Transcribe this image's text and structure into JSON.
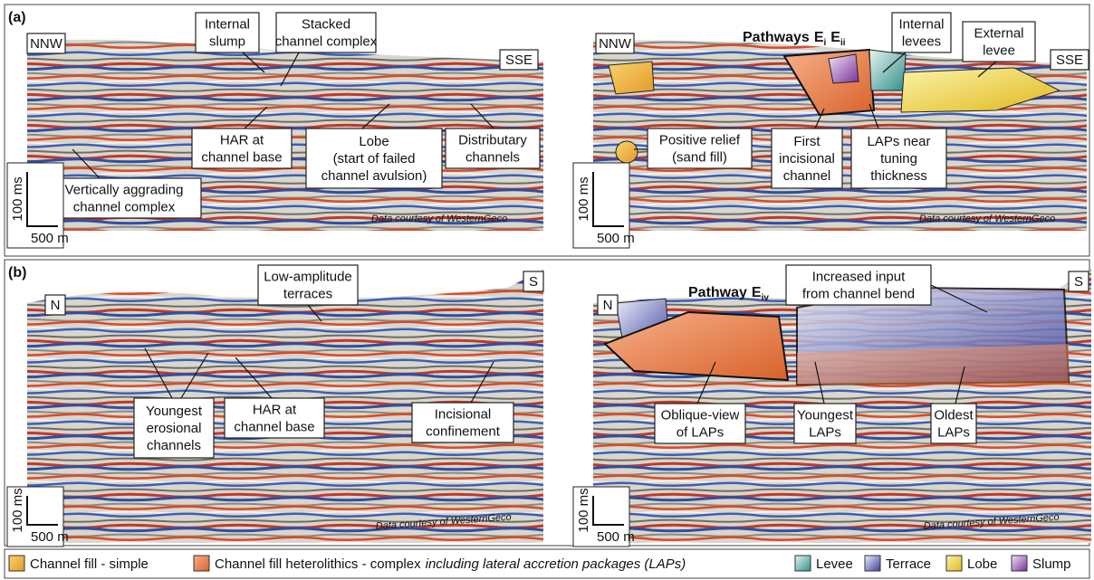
{
  "panels": [
    {
      "label": "(a)",
      "sections": [
        {
          "left_direction": "NNW",
          "right_direction": "SSE",
          "annotations": [
            {
              "lines": [
                "Internal",
                "slump"
              ]
            },
            {
              "lines": [
                "Stacked",
                "channel complex"
              ]
            },
            {
              "lines": [
                "HAR at",
                "channel base"
              ]
            },
            {
              "lines": [
                "Lobe",
                "(start of failed",
                "channel avulsion)"
              ]
            },
            {
              "lines": [
                "Distributary",
                "channels"
              ]
            },
            {
              "lines": [
                "Vertically aggrading",
                "channel complex"
              ]
            }
          ],
          "vertical_scale": "100 ms",
          "horizontal_scale": "500 m",
          "credit": "Data courtesy of WesternGeco"
        },
        {
          "title": {
            "text": "Pathways",
            "items": [
              {
                "letter": "E",
                "sub": "i"
              },
              {
                "letter": "E",
                "sub": "ii"
              }
            ]
          },
          "left_direction": "NNW",
          "right_direction": "SSE",
          "annotations": [
            {
              "lines": [
                "Internal",
                "levees"
              ]
            },
            {
              "lines": [
                "External",
                "levee"
              ]
            },
            {
              "lines": [
                "Positive relief",
                "(sand fill)"
              ]
            },
            {
              "lines": [
                "First",
                "incisional",
                "channel"
              ]
            },
            {
              "lines": [
                "LAPs near",
                "tuning",
                "thickness"
              ]
            }
          ],
          "vertical_scale": "100 ms",
          "horizontal_scale": "500 m",
          "credit": "Data courtesy of WesternGeco"
        }
      ]
    },
    {
      "label": "(b)",
      "sections": [
        {
          "left_direction": "N",
          "right_direction": "S",
          "annotations": [
            {
              "lines": [
                "Low-amplitude",
                "terraces"
              ]
            },
            {
              "lines": [
                "Youngest",
                "erosional",
                "channels"
              ]
            },
            {
              "lines": [
                "HAR at",
                "channel base"
              ]
            },
            {
              "lines": [
                "Incisional",
                "confinement"
              ]
            }
          ],
          "vertical_scale": "100 ms",
          "horizontal_scale": "500 m",
          "credit": "Data courtesy of WesternGeco"
        },
        {
          "title": {
            "text": "Pathway",
            "items": [
              {
                "letter": "E",
                "sub": "iv"
              }
            ]
          },
          "left_direction": "N",
          "right_direction": "S",
          "annotations": [
            {
              "lines": [
                "Increased input",
                "from channel bend"
              ]
            },
            {
              "lines": [
                "Oblique-view",
                "of LAPs"
              ]
            },
            {
              "lines": [
                "Youngest",
                "LAPs"
              ]
            },
            {
              "lines": [
                "Oldest",
                "LAPs"
              ]
            }
          ],
          "vertical_scale": "100 ms",
          "horizontal_scale": "500 m",
          "credit": "Data courtesy of WesternGeco"
        }
      ]
    }
  ],
  "legend": {
    "items": [
      {
        "label": "Channel fill - simple"
      },
      {
        "label": "Channel fill heterolithics - complex",
        "italic": "including lateral accretion packages (LAPs)"
      },
      {
        "label": "Levee"
      },
      {
        "label": "Terrace"
      },
      {
        "label": "Lobe"
      },
      {
        "label": "Slump"
      }
    ]
  }
}
